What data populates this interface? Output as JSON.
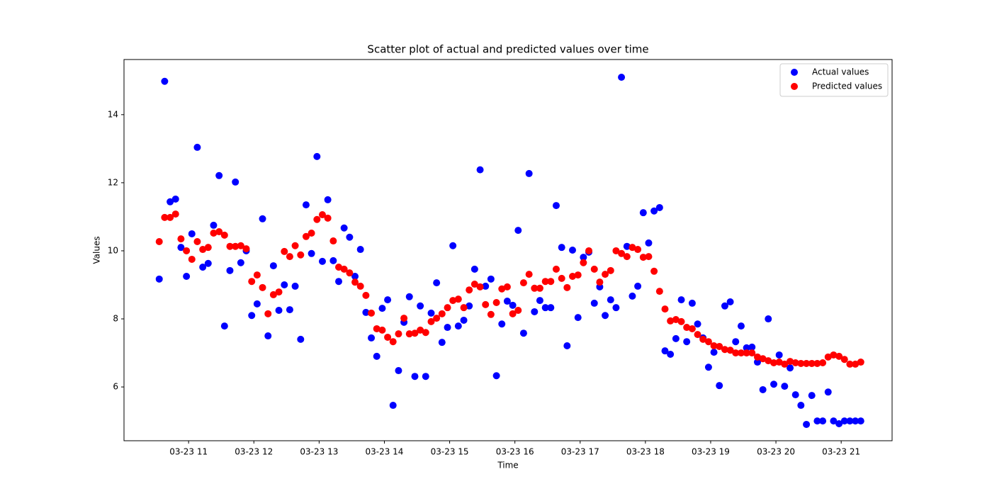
{
  "chart_data": {
    "type": "scatter",
    "title": "Scatter plot of actual and predicted values over time",
    "x_label": "Time",
    "y_label": "Values",
    "x": [
      10.55,
      10.633,
      10.717,
      10.8,
      10.883,
      10.967,
      11.05,
      11.133,
      11.217,
      11.3,
      11.383,
      11.467,
      11.55,
      11.633,
      11.717,
      11.8,
      11.883,
      11.967,
      12.05,
      12.133,
      12.217,
      12.3,
      12.383,
      12.467,
      12.55,
      12.633,
      12.717,
      12.8,
      12.883,
      12.967,
      13.05,
      13.133,
      13.217,
      13.3,
      13.383,
      13.467,
      13.55,
      13.633,
      13.717,
      13.8,
      13.883,
      13.967,
      14.05,
      14.133,
      14.217,
      14.3,
      14.383,
      14.467,
      14.55,
      14.633,
      14.717,
      14.8,
      14.883,
      14.967,
      15.05,
      15.133,
      15.217,
      15.3,
      15.383,
      15.467,
      15.55,
      15.633,
      15.717,
      15.8,
      15.883,
      15.967,
      16.05,
      16.133,
      16.217,
      16.3,
      16.383,
      16.467,
      16.55,
      16.633,
      16.717,
      16.8,
      16.883,
      16.967,
      17.05,
      17.133,
      17.217,
      17.3,
      17.383,
      17.467,
      17.55,
      17.633,
      17.717,
      17.8,
      17.883,
      17.967,
      18.05,
      18.133,
      18.217,
      18.3,
      18.383,
      18.467,
      18.55,
      18.633,
      18.717,
      18.8,
      18.883,
      18.967,
      19.05,
      19.133,
      19.217,
      19.3,
      19.383,
      19.467,
      19.55,
      19.633,
      19.717,
      19.8,
      19.883,
      19.967,
      20.05,
      20.133,
      20.217,
      20.3,
      20.383,
      20.467,
      20.55,
      20.633,
      20.717,
      20.8,
      20.883,
      20.967,
      21.05,
      21.133,
      21.217,
      21.3
    ],
    "series": [
      {
        "name": "Actual values",
        "color": "#0000ff",
        "values": [
          9.17,
          14.98,
          11.44,
          11.52,
          10.1,
          9.25,
          10.5,
          13.04,
          9.52,
          9.63,
          10.75,
          12.21,
          7.79,
          9.42,
          12.02,
          9.65,
          10.0,
          8.1,
          8.44,
          10.94,
          7.5,
          9.56,
          8.25,
          9.0,
          8.27,
          8.96,
          7.4,
          11.35,
          9.92,
          12.77,
          9.69,
          11.5,
          9.71,
          9.1,
          10.67,
          10.4,
          9.25,
          10.04,
          8.19,
          7.44,
          6.9,
          8.31,
          8.56,
          5.46,
          6.48,
          7.9,
          8.65,
          6.31,
          8.38,
          6.31,
          8.17,
          9.06,
          7.31,
          7.75,
          10.15,
          7.79,
          7.96,
          8.38,
          9.46,
          12.38,
          8.96,
          9.17,
          6.33,
          7.85,
          8.52,
          8.4,
          10.6,
          7.58,
          12.27,
          8.21,
          8.54,
          8.33,
          8.33,
          11.33,
          10.1,
          7.21,
          10.02,
          8.04,
          9.81,
          9.96,
          8.46,
          8.94,
          8.1,
          8.56,
          8.33,
          15.1,
          10.13,
          8.67,
          8.96,
          11.12,
          10.23,
          11.17,
          11.27,
          7.06,
          6.96,
          7.42,
          8.56,
          7.33,
          8.46,
          7.85,
          7.44,
          6.58,
          7.02,
          6.04,
          8.38,
          8.5,
          7.33,
          7.79,
          7.15,
          7.17,
          6.73,
          5.92,
          8.0,
          6.08,
          6.94,
          6.02,
          6.56,
          5.77,
          5.46,
          4.9,
          5.75,
          5.0,
          5.0,
          5.85,
          5.0,
          4.92,
          5.0,
          5.0,
          5.0,
          5.0
        ]
      },
      {
        "name": "Predicted values",
        "color": "#ff0000",
        "values": [
          10.27,
          10.98,
          10.98,
          11.08,
          10.35,
          10.0,
          9.75,
          10.27,
          10.04,
          10.1,
          10.52,
          10.56,
          10.46,
          10.13,
          10.13,
          10.15,
          10.06,
          9.1,
          9.29,
          8.92,
          8.15,
          8.71,
          8.79,
          9.98,
          9.83,
          10.15,
          9.88,
          10.42,
          10.52,
          10.92,
          11.06,
          10.96,
          10.29,
          9.52,
          9.46,
          9.35,
          9.08,
          8.96,
          8.69,
          8.17,
          7.71,
          7.67,
          7.46,
          7.33,
          7.56,
          8.02,
          7.56,
          7.58,
          7.67,
          7.6,
          7.92,
          8.02,
          8.15,
          8.33,
          8.54,
          8.58,
          8.33,
          8.85,
          9.02,
          8.94,
          8.42,
          8.13,
          8.48,
          8.88,
          8.94,
          8.15,
          8.25,
          9.06,
          9.31,
          8.9,
          8.9,
          9.1,
          9.1,
          9.46,
          9.19,
          8.92,
          9.25,
          9.29,
          9.65,
          10.0,
          9.46,
          9.08,
          9.31,
          9.42,
          10.0,
          9.92,
          9.83,
          10.1,
          10.04,
          9.81,
          9.83,
          9.4,
          8.81,
          8.29,
          7.94,
          7.98,
          7.92,
          7.75,
          7.71,
          7.54,
          7.4,
          7.33,
          7.21,
          7.19,
          7.1,
          7.08,
          7.0,
          7.0,
          7.0,
          7.0,
          6.88,
          6.83,
          6.77,
          6.71,
          6.73,
          6.67,
          6.75,
          6.71,
          6.69,
          6.69,
          6.69,
          6.69,
          6.71,
          6.88,
          6.94,
          6.9,
          6.81,
          6.67,
          6.67,
          6.73
        ]
      }
    ],
    "xlim": [
      10.01,
      21.78
    ],
    "xticks": [
      {
        "value": 11,
        "label": "03-23 11"
      },
      {
        "value": 12,
        "label": "03-23 12"
      },
      {
        "value": 13,
        "label": "03-23 13"
      },
      {
        "value": 14,
        "label": "03-23 14"
      },
      {
        "value": 15,
        "label": "03-23 15"
      },
      {
        "value": 16,
        "label": "03-23 16"
      },
      {
        "value": 17,
        "label": "03-23 17"
      },
      {
        "value": 18,
        "label": "03-23 18"
      },
      {
        "value": 19,
        "label": "03-23 19"
      },
      {
        "value": 20,
        "label": "03-23 20"
      },
      {
        "value": 21,
        "label": "03-23 21"
      }
    ],
    "ylim": [
      4.42,
      15.62
    ],
    "yticks": [
      6,
      8,
      10,
      12,
      14
    ],
    "legend": "upper right"
  }
}
